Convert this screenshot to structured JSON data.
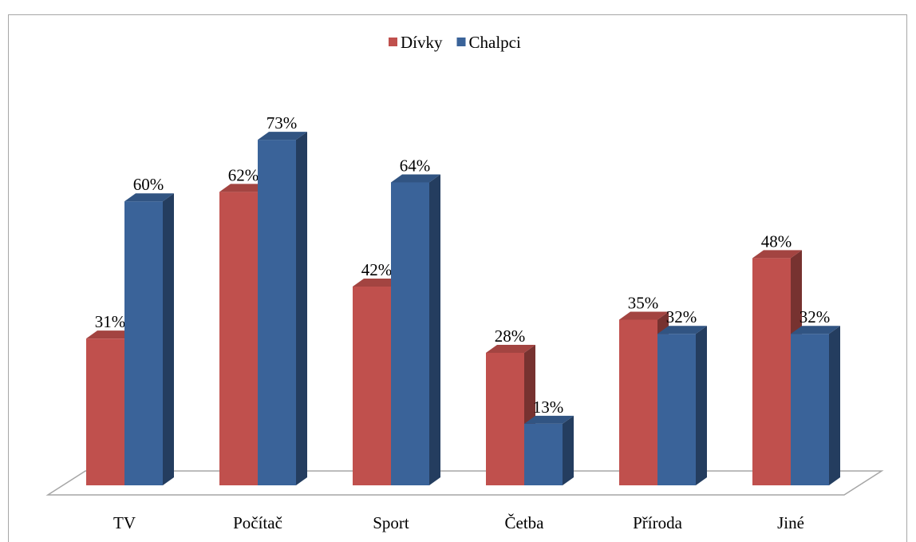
{
  "chart_data": {
    "type": "bar3d",
    "categories": [
      "TV",
      "Počítač",
      "Sport",
      "Četba",
      "Příroda",
      "Jiné"
    ],
    "series": [
      {
        "name": "Dívky",
        "color": "#c0504d",
        "values": [
          31,
          62,
          42,
          28,
          35,
          48
        ],
        "value_labels": [
          "31%",
          "62%",
          "42%",
          "28%",
          "35%",
          "48%"
        ]
      },
      {
        "name": "Chalpci",
        "color": "#3a6399",
        "values": [
          60,
          73,
          64,
          13,
          32,
          32
        ],
        "value_labels": [
          "60%",
          "73%",
          "64%",
          "13%",
          "32%",
          "32%"
        ]
      }
    ],
    "legend": "top"
  }
}
